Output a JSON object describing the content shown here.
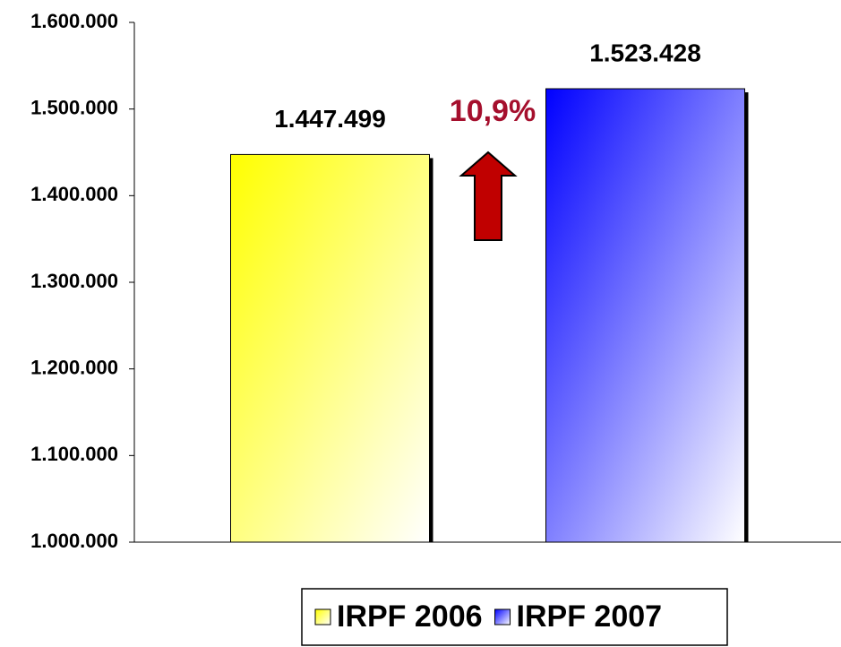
{
  "chart_data": {
    "type": "bar",
    "categories": [
      null
    ],
    "series": [
      {
        "name": "IRPF 2006",
        "color": "#ffff00",
        "values": [
          1447499
        ],
        "value_labels": [
          "1.447.499"
        ]
      },
      {
        "name": "IRPF 2007",
        "color": "#0000ff",
        "values": [
          1523428
        ],
        "value_labels": [
          "1.523.428"
        ]
      }
    ],
    "annotation": "10,9%",
    "ylim": [
      1000000,
      1600000
    ],
    "yticks": [
      {
        "value": 1000000,
        "label": "1.000.000"
      },
      {
        "value": 1100000,
        "label": "1.100.000"
      },
      {
        "value": 1200000,
        "label": "1.200.000"
      },
      {
        "value": 1300000,
        "label": "1.300.000"
      },
      {
        "value": 1400000,
        "label": "1.400.000"
      },
      {
        "value": 1500000,
        "label": "1.500.000"
      },
      {
        "value": 1600000,
        "label": "1.600.000"
      }
    ],
    "legend": "bottom"
  }
}
